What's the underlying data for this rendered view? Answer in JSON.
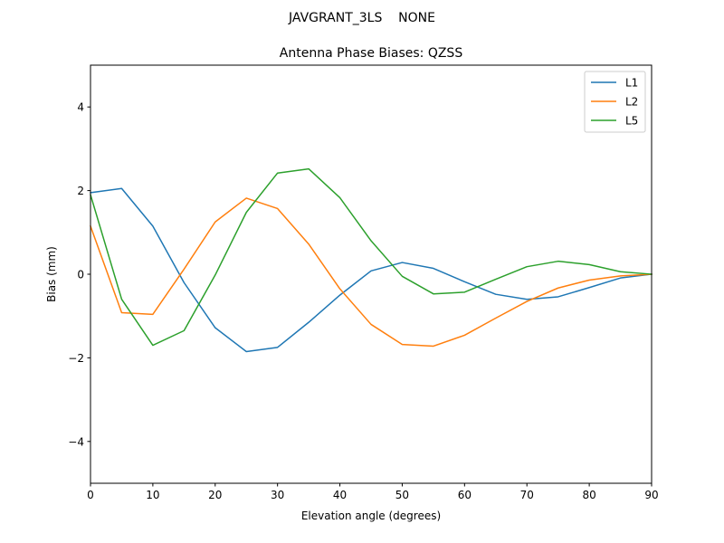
{
  "chart_data": {
    "type": "line",
    "suptitle": "JAVGRANT_3LS    NONE",
    "title": "Antenna Phase Biases: QZSS",
    "xlabel": "Elevation angle (degrees)",
    "ylabel": "Bias (mm)",
    "xlim": [
      0,
      90
    ],
    "ylim": [
      -5,
      5
    ],
    "xticks": [
      0,
      10,
      20,
      30,
      40,
      50,
      60,
      70,
      80,
      90
    ],
    "yticks": [
      -4,
      -2,
      0,
      2,
      4
    ],
    "xtick_labels": [
      "0",
      "10",
      "20",
      "30",
      "40",
      "50",
      "60",
      "70",
      "80",
      "90"
    ],
    "ytick_labels": [
      "−4",
      "−2",
      "0",
      "2",
      "4"
    ],
    "grid": false,
    "legend_position": "top-right",
    "x": [
      0,
      5,
      10,
      15,
      20,
      25,
      30,
      35,
      40,
      45,
      50,
      55,
      60,
      65,
      70,
      75,
      80,
      85,
      90
    ],
    "series": [
      {
        "name": "L1",
        "color": "#1f77b4",
        "values": [
          1.95,
          2.05,
          1.15,
          -0.2,
          -1.28,
          -1.85,
          -1.75,
          -1.15,
          -0.5,
          0.08,
          0.28,
          0.14,
          -0.18,
          -0.48,
          -0.6,
          -0.54,
          -0.32,
          -0.09,
          0.0
        ]
      },
      {
        "name": "L2",
        "color": "#ff7f0e",
        "values": [
          1.15,
          -0.92,
          -0.96,
          0.12,
          1.25,
          1.82,
          1.57,
          0.72,
          -0.35,
          -1.2,
          -1.68,
          -1.72,
          -1.46,
          -1.05,
          -0.65,
          -0.33,
          -0.14,
          -0.04,
          0.0
        ]
      },
      {
        "name": "L5",
        "color": "#2ca02c",
        "values": [
          1.9,
          -0.6,
          -1.7,
          -1.35,
          -0.02,
          1.48,
          2.42,
          2.52,
          1.83,
          0.8,
          -0.05,
          -0.47,
          -0.43,
          -0.12,
          0.18,
          0.31,
          0.23,
          0.06,
          0.0
        ]
      }
    ]
  }
}
